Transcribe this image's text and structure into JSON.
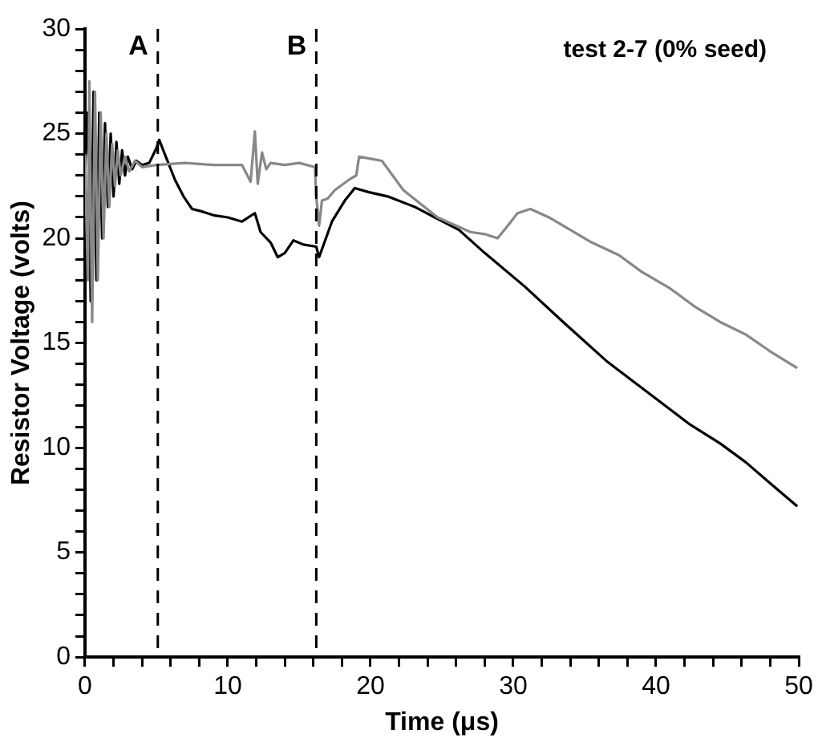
{
  "chart_data": {
    "type": "line",
    "xlabel": "Time (μs)",
    "ylabel": "Resistor Voltage (volts)",
    "annotations": [
      "test 2-7 (0% seed)"
    ],
    "xlim": [
      0,
      50
    ],
    "ylim": [
      0,
      30
    ],
    "xticks": [
      0,
      {
        "value": 2,
        "label": null
      },
      {
        "value": 4,
        "label": null
      },
      {
        "value": 6,
        "label": null
      },
      {
        "value": 8,
        "label": null
      },
      10,
      {
        "value": 12,
        "label": null
      },
      {
        "value": 14,
        "label": null
      },
      {
        "value": 16,
        "label": null
      },
      {
        "value": 18,
        "label": null
      },
      20,
      {
        "value": 22,
        "label": null
      },
      {
        "value": 24,
        "label": null
      },
      {
        "value": 26,
        "label": null
      },
      {
        "value": 28,
        "label": null
      },
      30,
      {
        "value": 32,
        "label": null
      },
      {
        "value": 34,
        "label": null
      },
      {
        "value": 36,
        "label": null
      },
      {
        "value": 38,
        "label": null
      },
      40,
      {
        "value": 42,
        "label": null
      },
      {
        "value": 44,
        "label": null
      },
      {
        "value": 46,
        "label": null
      },
      {
        "value": 48,
        "label": null
      },
      50
    ],
    "yticks": [
      0,
      {
        "value": 1,
        "label": null
      },
      {
        "value": 2,
        "label": null
      },
      {
        "value": 3,
        "label": null
      },
      {
        "value": 4,
        "label": null
      },
      5,
      {
        "value": 6,
        "label": null
      },
      {
        "value": 7,
        "label": null
      },
      {
        "value": 8,
        "label": null
      },
      {
        "value": 9,
        "label": null
      },
      10,
      {
        "value": 11,
        "label": null
      },
      {
        "value": 12,
        "label": null
      },
      {
        "value": 13,
        "label": null
      },
      {
        "value": 14,
        "label": null
      },
      15,
      {
        "value": 16,
        "label": null
      },
      {
        "value": 17,
        "label": null
      },
      {
        "value": 18,
        "label": null
      },
      {
        "value": 19,
        "label": null
      },
      20,
      {
        "value": 21,
        "label": null
      },
      {
        "value": 22,
        "label": null
      },
      {
        "value": 23,
        "label": null
      },
      {
        "value": 24,
        "label": null
      },
      25,
      {
        "value": 26,
        "label": null
      },
      {
        "value": 27,
        "label": null
      },
      {
        "value": 28,
        "label": null
      },
      {
        "value": 29,
        "label": null
      },
      30
    ],
    "grid": false,
    "legend": false,
    "marker": "none",
    "line_style": "solid",
    "ref_lines": [
      {
        "axis": "x",
        "value": 5.1,
        "label": "A",
        "color": "#000000",
        "line_style": "dashed"
      },
      {
        "axis": "x",
        "value": 16.2,
        "label": "B",
        "color": "#000000",
        "line_style": "dashed"
      }
    ],
    "series": [
      {
        "color": "#888888",
        "x": [
          0,
          0.2,
          0.3,
          0.5,
          0.7,
          0.9,
          1.1,
          1.3,
          1.5,
          1.7,
          1.9,
          2.1,
          2.3,
          2.5,
          2.8,
          3.1,
          3.5,
          4,
          5,
          7,
          9,
          11,
          11.6,
          11.9,
          12.1,
          12.4,
          12.7,
          13,
          14,
          15,
          16.1,
          16.2,
          16.4,
          16.6,
          17,
          17.5,
          18.5,
          19,
          19.2,
          20,
          20.8,
          22.3,
          24.7,
          27,
          28,
          28.9,
          29.5,
          30.3,
          31.2,
          32.5,
          34,
          35.5,
          37.4,
          39,
          41,
          42.8,
          44.5,
          46.3,
          48,
          49.9
        ],
        "values": [
          24,
          18,
          27.5,
          16,
          27,
          18,
          26,
          20,
          25,
          21.5,
          24.5,
          22.5,
          24.2,
          23,
          23.9,
          23.2,
          23.7,
          23.4,
          23.5,
          23.6,
          23.5,
          23.5,
          22.7,
          25.1,
          22.6,
          24.1,
          23.3,
          23.6,
          23.5,
          23.6,
          23.4,
          22,
          20.6,
          21.8,
          21.9,
          22.3,
          22.8,
          23,
          23.9,
          23.8,
          23.7,
          22.3,
          21,
          20.3,
          20.2,
          20,
          20.5,
          21.2,
          21.4,
          21,
          20.4,
          19.8,
          19.2,
          18.4,
          17.6,
          16.7,
          16,
          15.4,
          14.6,
          13.8
        ]
      },
      {
        "color": "#000000",
        "x": [
          0,
          0.2,
          0.4,
          0.6,
          0.8,
          1,
          1.2,
          1.4,
          1.6,
          1.8,
          2,
          2.2,
          2.4,
          2.6,
          2.8,
          3,
          3.3,
          3.6,
          4,
          4.5,
          5,
          5.2,
          5.6,
          6.3,
          6.9,
          7.5,
          8.1,
          9,
          10,
          11,
          11.9,
          12.3,
          13,
          13.5,
          14,
          14.6,
          15.3,
          16.2,
          16.4,
          17.3,
          18.2,
          18.9,
          19.9,
          21.2,
          23.1,
          24.5,
          26.2,
          28,
          30.8,
          33.5,
          36.6,
          39.5,
          42.4,
          44.5,
          46.3,
          48,
          49.9
        ],
        "values": [
          23.5,
          26,
          17,
          27,
          18,
          26,
          20,
          25.5,
          21.5,
          25,
          22,
          24.6,
          22.6,
          24.2,
          23,
          23.9,
          23.3,
          23.7,
          23.5,
          23.6,
          24.3,
          24.7,
          24,
          22.8,
          22,
          21.4,
          21.3,
          21.1,
          21,
          20.8,
          21.2,
          20.3,
          19.8,
          19.1,
          19.3,
          19.9,
          19.7,
          19.6,
          19.1,
          20.8,
          21.8,
          22.4,
          22.2,
          22,
          21.5,
          21,
          20.4,
          19.3,
          17.7,
          16,
          14.1,
          12.6,
          11.1,
          10.2,
          9.3,
          8.3,
          7.2
        ]
      }
    ]
  }
}
